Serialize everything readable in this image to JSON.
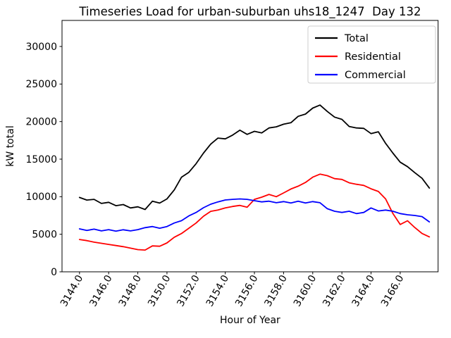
{
  "chart_data": {
    "type": "line",
    "title": "Timeseries Load for urban-suburban uhs18_1247  Day 132",
    "xlabel": "Hour of Year",
    "ylabel": "kW total",
    "xlim": [
      3142.8,
      3168.6
    ],
    "ylim": [
      0,
      33470
    ],
    "grid": false,
    "legend_position": "upper right",
    "x_start": 3144.0,
    "x_step": 0.5,
    "x_ticks": [
      3144,
      3146,
      3148,
      3150,
      3152,
      3154,
      3156,
      3158,
      3160,
      3162,
      3164,
      3166
    ],
    "x_tick_labels": [
      "3144.0",
      "3146.0",
      "3148.0",
      "3150.0",
      "3152.0",
      "3154.0",
      "3156.0",
      "3158.0",
      "3160.0",
      "3162.0",
      "3164.0",
      "3166.0"
    ],
    "y_ticks": [
      0,
      5000,
      10000,
      15000,
      20000,
      25000,
      30000
    ],
    "y_tick_labels": [
      "0",
      "5000",
      "10000",
      "15000",
      "20000",
      "25000",
      "30000"
    ],
    "series": [
      {
        "name": "Total",
        "color": "#000000",
        "values": [
          9900,
          9550,
          9650,
          9100,
          9250,
          8800,
          8950,
          8500,
          8650,
          8300,
          9400,
          9150,
          9700,
          10900,
          12600,
          13250,
          14400,
          15800,
          17000,
          17800,
          17700,
          18200,
          18850,
          18300,
          18700,
          18500,
          19150,
          19300,
          19650,
          19850,
          20700,
          21000,
          21800,
          22200,
          21350,
          20600,
          20300,
          19350,
          19150,
          19100,
          18400,
          18650,
          17100,
          15800,
          14600,
          14000,
          13200,
          12450,
          11150
        ]
      },
      {
        "name": "Residential",
        "color": "#ff0000",
        "values": [
          4300,
          4150,
          3950,
          3800,
          3650,
          3500,
          3350,
          3150,
          2950,
          2900,
          3450,
          3400,
          3840,
          4600,
          5100,
          5800,
          6500,
          7400,
          8050,
          8220,
          8500,
          8700,
          8840,
          8600,
          9650,
          9940,
          10300,
          10000,
          10500,
          11030,
          11400,
          11900,
          12600,
          13000,
          12800,
          12400,
          12300,
          11850,
          11650,
          11500,
          11050,
          10700,
          9700,
          7750,
          6300,
          6800,
          5900,
          5100,
          4650
        ]
      },
      {
        "name": "Commercial",
        "color": "#0000ff",
        "values": [
          5720,
          5500,
          5680,
          5450,
          5620,
          5420,
          5600,
          5450,
          5620,
          5875,
          6030,
          5800,
          6030,
          6500,
          6810,
          7440,
          7900,
          8530,
          9000,
          9310,
          9560,
          9650,
          9700,
          9650,
          9470,
          9310,
          9400,
          9200,
          9350,
          9160,
          9400,
          9160,
          9350,
          9200,
          8400,
          8060,
          7900,
          8060,
          7750,
          7900,
          8500,
          8100,
          8220,
          8060,
          7750,
          7590,
          7500,
          7350,
          6650
        ]
      }
    ]
  }
}
